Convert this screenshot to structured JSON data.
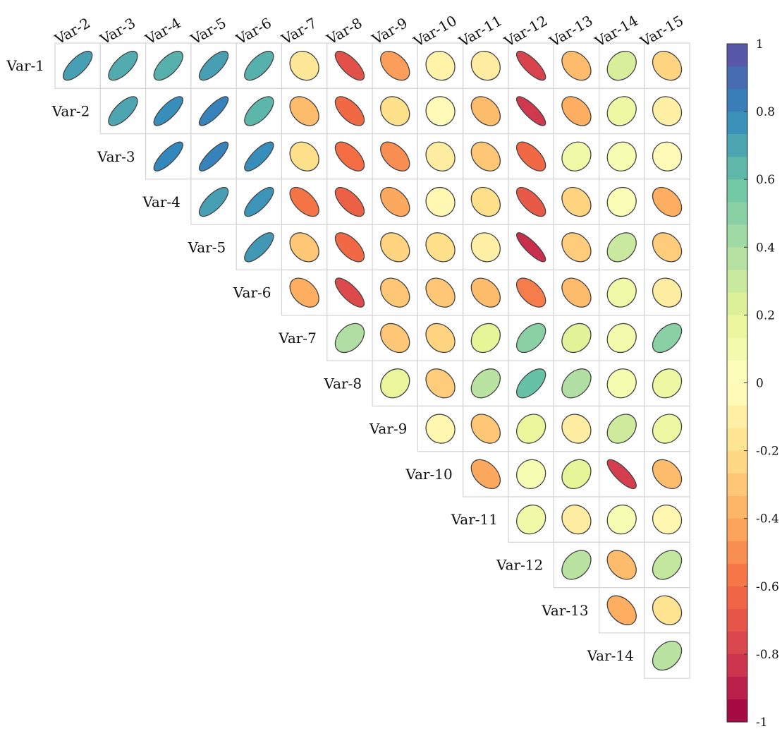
{
  "chart_data": {
    "type": "heatmap",
    "subtype": "correlation-ellipse-upper-triangle",
    "row_labels": [
      "Var-1",
      "Var-2",
      "Var-3",
      "Var-4",
      "Var-5",
      "Var-6",
      "Var-7",
      "Var-8",
      "Var-9",
      "Var-10",
      "Var-11",
      "Var-12",
      "Var-13",
      "Var-14"
    ],
    "col_labels": [
      "Var-2",
      "Var-3",
      "Var-4",
      "Var-5",
      "Var-6",
      "Var-7",
      "Var-8",
      "Var-9",
      "Var-10",
      "Var-11",
      "Var-12",
      "Var-13",
      "Var-14",
      "Var-15"
    ],
    "matrix": [
      [
        0.72,
        0.68,
        0.66,
        0.72,
        0.66,
        -0.15,
        -0.72,
        -0.45,
        -0.08,
        -0.12,
        -0.78,
        -0.35,
        0.25,
        -0.25
      ],
      [
        null,
        0.7,
        0.78,
        0.82,
        0.64,
        -0.35,
        -0.62,
        -0.2,
        -0.03,
        -0.35,
        -0.82,
        -0.4,
        0.15,
        -0.1
      ],
      [
        null,
        null,
        0.8,
        0.82,
        0.78,
        -0.2,
        -0.6,
        -0.5,
        -0.12,
        -0.3,
        -0.62,
        0.12,
        0.06,
        -0.03
      ],
      [
        null,
        null,
        null,
        0.72,
        0.76,
        -0.58,
        -0.65,
        -0.42,
        -0.05,
        -0.2,
        -0.68,
        -0.25,
        0.05,
        -0.4
      ],
      [
        null,
        null,
        null,
        null,
        0.74,
        -0.3,
        -0.62,
        -0.25,
        -0.2,
        -0.1,
        -0.85,
        -0.28,
        0.3,
        -0.28
      ],
      [
        null,
        null,
        null,
        null,
        null,
        -0.4,
        -0.75,
        -0.3,
        -0.3,
        -0.35,
        -0.55,
        -0.35,
        0.12,
        -0.12
      ],
      [
        null,
        null,
        null,
        null,
        null,
        null,
        0.38,
        -0.3,
        -0.25,
        0.2,
        0.5,
        0.22,
        0.1,
        0.5
      ],
      [
        null,
        null,
        null,
        null,
        null,
        null,
        null,
        0.18,
        -0.28,
        0.35,
        0.6,
        0.38,
        0.08,
        0.15
      ],
      [
        null,
        null,
        null,
        null,
        null,
        null,
        null,
        null,
        -0.06,
        -0.3,
        0.18,
        -0.12,
        0.28,
        0.15
      ],
      [
        null,
        null,
        null,
        null,
        null,
        null,
        null,
        null,
        null,
        -0.42,
        0.06,
        0.2,
        -0.8,
        -0.35
      ],
      [
        null,
        null,
        null,
        null,
        null,
        null,
        null,
        null,
        null,
        null,
        0.12,
        -0.12,
        0.06,
        -0.06
      ],
      [
        null,
        null,
        null,
        null,
        null,
        null,
        null,
        null,
        null,
        null,
        null,
        0.35,
        -0.35,
        0.32
      ],
      [
        null,
        null,
        null,
        null,
        null,
        null,
        null,
        null,
        null,
        null,
        null,
        null,
        -0.4,
        -0.18
      ],
      [
        null,
        null,
        null,
        null,
        null,
        null,
        null,
        null,
        null,
        null,
        null,
        null,
        null,
        0.35
      ]
    ],
    "colorbar": {
      "range": [
        -1,
        1
      ],
      "ticks": [
        "1",
        "0.8",
        "0.6",
        "0.4",
        "0.2",
        "0",
        "-0.2",
        "-0.4",
        "-0.6",
        "-0.8",
        "-1"
      ],
      "colors": [
        "#9e0142",
        "#d53e4f",
        "#f46d43",
        "#fdae61",
        "#fee08b",
        "#ffffbf",
        "#e6f598",
        "#abdda4",
        "#66c2a5",
        "#3288bd",
        "#5e4fa2"
      ]
    },
    "title": "",
    "xlabel": "",
    "ylabel": "",
    "grid": true,
    "legend": "colorbar-right"
  }
}
